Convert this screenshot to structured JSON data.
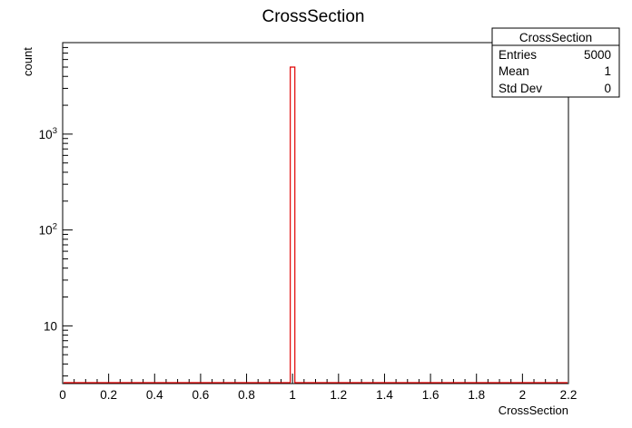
{
  "chart_data": {
    "type": "bar",
    "title": "CrossSection",
    "xlabel": "CrossSection",
    "ylabel": "count",
    "xlim": [
      0,
      2.2
    ],
    "ylog": true,
    "ylim": [
      2.5,
      9000
    ],
    "x_ticks": [
      0,
      0.2,
      0.4,
      0.6,
      0.8,
      1,
      1.2,
      1.4,
      1.6,
      1.8,
      2,
      2.2
    ],
    "x_tick_labels": [
      "0",
      "0.2",
      "0.4",
      "0.6",
      "0.8",
      "1",
      "1.2",
      "1.4",
      "1.6",
      "1.8",
      "2",
      "2.2"
    ],
    "y_ticks": [
      10,
      100,
      1000
    ],
    "y_tick_labels": [
      {
        "base": "10",
        "exp": ""
      },
      {
        "base": "10",
        "exp": "2"
      },
      {
        "base": "10",
        "exp": "3"
      }
    ],
    "bins": [
      {
        "low": 0.99,
        "high": 1.01,
        "count": 5000
      }
    ],
    "line_color": "#e00000",
    "grid": false,
    "stats_box": {
      "title": "CrossSection",
      "rows": [
        {
          "label": "Entries",
          "value": "5000"
        },
        {
          "label": "Mean",
          "value": "1"
        },
        {
          "label": "Std Dev",
          "value": "0"
        }
      ],
      "placement": "top-right"
    }
  }
}
